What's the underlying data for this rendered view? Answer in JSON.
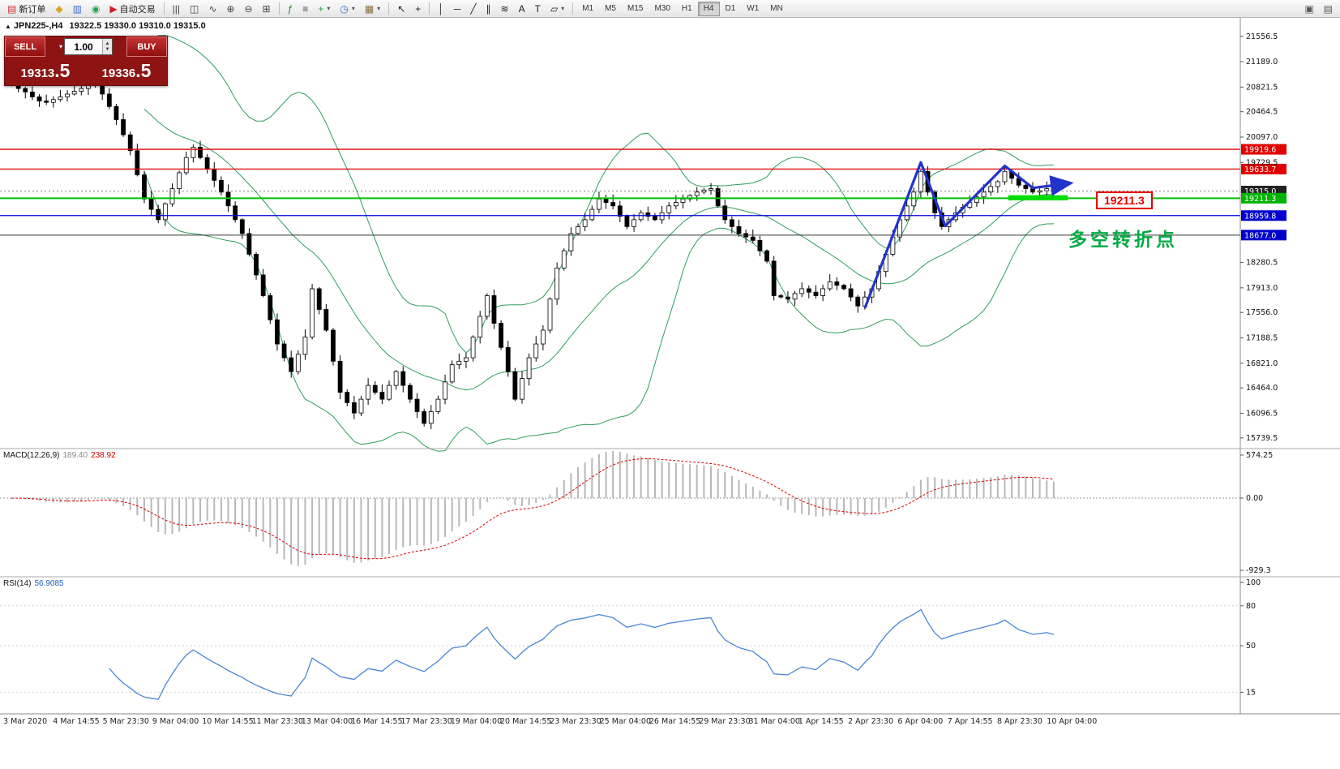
{
  "toolbar": {
    "dropdown_glyph": "▾",
    "items": [
      {
        "type": "button",
        "name": "new-order-button",
        "glyph": "▤",
        "glyph_color": "#cc3333",
        "label": "新订单"
      },
      {
        "type": "button",
        "name": "favorites-icon",
        "glyph": "◆",
        "glyph_color": "#d9a520"
      },
      {
        "type": "button",
        "name": "chart-window-icon",
        "glyph": "▥",
        "glyph_color": "#3a6ecf"
      },
      {
        "type": "button",
        "name": "data-window-icon",
        "glyph": "◉",
        "glyph_color": "#2e9e4f"
      },
      {
        "type": "button",
        "name": "autotrading-button",
        "glyph": "▶",
        "glyph_color": "#cc2222",
        "label": "自动交易"
      },
      {
        "type": "sep"
      },
      {
        "type": "button",
        "name": "bar-chart-icon",
        "glyph": "|||",
        "glyph_color": "#444"
      },
      {
        "type": "button",
        "name": "candle-chart-icon",
        "glyph": "◫",
        "glyph_color": "#444"
      },
      {
        "type": "button",
        "name": "line-chart-icon",
        "glyph": "∿",
        "glyph_color": "#444"
      },
      {
        "type": "button",
        "name": "zoom-in-icon",
        "glyph": "⊕",
        "glyph_color": "#444"
      },
      {
        "type": "button",
        "name": "zoom-out-icon",
        "glyph": "⊖",
        "glyph_color": "#444"
      },
      {
        "type": "button",
        "name": "tile-windows-icon",
        "glyph": "⊞",
        "glyph_color": "#444"
      },
      {
        "type": "sep"
      },
      {
        "type": "button",
        "name": "indicators-icon",
        "glyph": "ƒ",
        "glyph_color": "#2e7d32"
      },
      {
        "type": "button",
        "name": "indicator-list-icon",
        "glyph": "≡",
        "glyph_color": "#444"
      },
      {
        "type": "dropdown",
        "name": "add-indicator-dropdown",
        "glyph": "+",
        "glyph_color": "#2e9e4f"
      },
      {
        "type": "dropdown",
        "name": "period-dropdown",
        "glyph": "◷",
        "glyph_color": "#3a6ecf"
      },
      {
        "type": "dropdown",
        "name": "template-dropdown",
        "glyph": "▦",
        "glyph_color": "#8a6d3b"
      },
      {
        "type": "sep"
      },
      {
        "type": "button",
        "name": "cursor-icon",
        "glyph": "↖",
        "glyph_color": "#222"
      },
      {
        "type": "button",
        "name": "crosshair-icon",
        "glyph": "+",
        "glyph_color": "#222"
      },
      {
        "type": "sep"
      },
      {
        "type": "button",
        "name": "vertical-line-icon",
        "glyph": "│",
        "glyph_color": "#222"
      },
      {
        "type": "button",
        "name": "horizontal-line-icon",
        "glyph": "─",
        "glyph_color": "#222"
      },
      {
        "type": "button",
        "name": "trendline-icon",
        "glyph": "╱",
        "glyph_color": "#222"
      },
      {
        "type": "button",
        "name": "channel-icon",
        "glyph": "∥",
        "glyph_color": "#222"
      },
      {
        "type": "button",
        "name": "fibonacci-icon",
        "glyph": "≋",
        "glyph_color": "#222"
      },
      {
        "type": "button",
        "name": "text-icon",
        "glyph": "A",
        "glyph_color": "#222"
      },
      {
        "type": "button",
        "name": "text-label-icon",
        "glyph": "T",
        "glyph_color": "#222"
      },
      {
        "type": "dropdown",
        "name": "shapes-dropdown",
        "glyph": "▱",
        "glyph_color": "#222"
      },
      {
        "type": "sep"
      }
    ],
    "timeframes": [
      "M1",
      "M5",
      "M15",
      "M30",
      "H1",
      "H4",
      "D1",
      "W1",
      "MN"
    ],
    "active_timeframe": "H4",
    "window_icons": [
      {
        "name": "new-chart-window-icon",
        "glyph": "▣"
      },
      {
        "name": "window-layout-icon",
        "glyph": "▤"
      }
    ]
  },
  "header": {
    "collapse_icon": "▲",
    "title": "JPN225-,H4",
    "ohlc": "19322.5 19330.0 19310.0 19315.0"
  },
  "trade_panel": {
    "sell_label": "SELL",
    "buy_label": "BUY",
    "volume": "1.00",
    "preset_arrow": "▾",
    "spinner_up": "▲",
    "spinner_down": "▼",
    "sell_price_main": "19313",
    "sell_price_big": ".5",
    "buy_price_main": "19336",
    "buy_price_big": ".5"
  },
  "chart_data": [
    {
      "type": "candlestick",
      "title": "JPN225-,H4",
      "open_first": 20900,
      "closes": [
        20850,
        20800,
        20750,
        20680,
        20620,
        20600,
        20640,
        20680,
        20720,
        20760,
        20800,
        20860,
        20900,
        20720,
        20540,
        20350,
        20130,
        19900,
        19550,
        19200,
        19050,
        18900,
        19130,
        19350,
        19580,
        19800,
        19950,
        19800,
        19630,
        19470,
        19300,
        19100,
        18900,
        18700,
        18400,
        18100,
        17800,
        17450,
        17100,
        16900,
        16700,
        16950,
        17200,
        17900,
        17600,
        17300,
        16850,
        16400,
        16250,
        16100,
        16300,
        16500,
        16400,
        16300,
        16500,
        16700,
        16500,
        16300,
        16120,
        15950,
        16120,
        16300,
        16550,
        16800,
        16850,
        16900,
        17200,
        17500,
        17800,
        17400,
        17050,
        16700,
        16300,
        16600,
        16900,
        17100,
        17300,
        17750,
        18200,
        18450,
        18700,
        18800,
        18900,
        19050,
        19200,
        19150,
        19100,
        18950,
        18800,
        18900,
        19000,
        18950,
        18900,
        19000,
        19100,
        19150,
        19200,
        19250,
        19300,
        19330,
        19350,
        19100,
        18900,
        18800,
        18700,
        18650,
        18600,
        18450,
        18300,
        17800,
        17780,
        17750,
        17830,
        17900,
        17850,
        17800,
        17900,
        18000,
        17950,
        17900,
        17780,
        17650,
        17780,
        17900,
        18150,
        18400,
        18650,
        18900,
        19100,
        19300,
        19600,
        19300,
        19000,
        18800,
        18900,
        19000,
        19080,
        19150,
        19230,
        19300,
        19380,
        19450,
        19600,
        19500,
        19400,
        19350,
        19300,
        19320,
        19350,
        19315
      ],
      "bollinger": {
        "period": 20,
        "deviations": 2,
        "color": "#2e9e5b"
      },
      "y_ticks": [
        "21556.5",
        "21189.0",
        "20821.5",
        "20464.5",
        "20097.0",
        "19729.5",
        "18280.5",
        "17913.0",
        "17556.0",
        "17188.5",
        "16821.0",
        "16464.0",
        "16096.5",
        "15739.5"
      ],
      "x_labels": [
        "3 Mar 2020",
        "4 Mar 14:55",
        "5 Mar 23:30",
        "9 Mar 04:00",
        "10 Mar 14:55",
        "11 Mar 23:30",
        "13 Mar 04:00",
        "16 Mar 14:55",
        "17 Mar 23:30",
        "19 Mar 04:00",
        "20 Mar 14:55",
        "23 Mar 23:30",
        "25 Mar 04:00",
        "26 Mar 14:55",
        "29 Mar 23:30",
        "31 Mar 04:00",
        "1 Apr 14:55",
        "2 Apr 23:30",
        "6 Apr 04:00",
        "7 Apr 14:55",
        "8 Apr 23:30",
        "10 Apr 04:00"
      ],
      "levels": [
        {
          "price": 19919.6,
          "label": "19919.6",
          "color": "#e00000",
          "label_bg": "#e00000",
          "w": 1.3
        },
        {
          "price": 19633.7,
          "label": "19633.7",
          "color": "#e00000",
          "label_bg": "#e00000",
          "w": 1.3
        },
        {
          "price": 19315.0,
          "label": "19315.0",
          "color": "#808080",
          "label_bg": "#222222",
          "style": "dotted",
          "w": 1
        },
        {
          "price": 19211.3,
          "label": "19211.3",
          "color": "#00c200",
          "label_bg": "#00b300",
          "w": 2
        },
        {
          "price": 18959.8,
          "label": "18959.8",
          "color": "#0000dd",
          "label_bg": "#0000cc",
          "w": 1.3
        },
        {
          "price": 18677.0,
          "label": "18677.0",
          "color": "#333333",
          "label_bg": "#0000cc",
          "w": 1
        }
      ],
      "annotations": {
        "zigzag": {
          "points": [
            [
              122,
              17620
            ],
            [
              130,
              19730
            ],
            [
              133.5,
              18810
            ],
            [
              142,
              19680
            ],
            [
              146,
              19360
            ],
            [
              151.5,
              19430
            ]
          ],
          "color": "#2233cc"
        },
        "highlight": {
          "from_index": 142.5,
          "to_index": 151,
          "price_top": 19255,
          "price_bottom": 19180,
          "color": "#00dd00"
        },
        "callout": {
          "text": "19211.3",
          "color": "#e60000"
        },
        "note": {
          "text": "多空转折点",
          "color": "#00aa44"
        }
      }
    },
    {
      "type": "macd",
      "label": "MACD(12,26,9)",
      "value_main": "189.40",
      "value_signal": "238.92",
      "params": {
        "fast": 12,
        "slow": 26,
        "signal": 9
      },
      "y_ticks": [
        "574.25",
        "0.00",
        "-929.3"
      ],
      "range": [
        -929.3,
        574.25
      ],
      "histogram_color": "#b8b8b8",
      "signal_color": "#dd0000"
    },
    {
      "type": "rsi",
      "label": "RSI(14)",
      "value": "56.9085",
      "period": 14,
      "levels": [
        80,
        50,
        15
      ],
      "y_ticks": [
        "100",
        "80",
        "50",
        "15"
      ],
      "scale": [
        0,
        100
      ],
      "line_color": "#4a86d8"
    }
  ]
}
